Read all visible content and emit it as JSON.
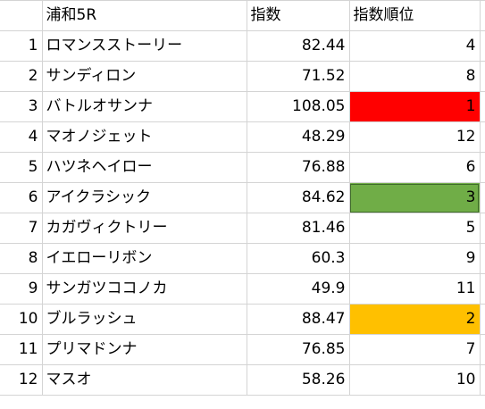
{
  "header": {
    "race": "浦和5R",
    "index": "指数",
    "rank": "指数順位"
  },
  "rows": [
    {
      "num": "1",
      "name": "ロマンスストーリー",
      "index": "82.44",
      "rank": "4",
      "fill": ""
    },
    {
      "num": "2",
      "name": "サンディロン",
      "index": "71.52",
      "rank": "8",
      "fill": ""
    },
    {
      "num": "3",
      "name": "バトルオサンナ",
      "index": "108.05",
      "rank": "1",
      "fill": "#ff0000"
    },
    {
      "num": "4",
      "name": "マオノジェット",
      "index": "48.29",
      "rank": "12",
      "fill": ""
    },
    {
      "num": "5",
      "name": "ハツネヘイロー",
      "index": "76.88",
      "rank": "6",
      "fill": ""
    },
    {
      "num": "6",
      "name": "アイクラシック",
      "index": "84.62",
      "rank": "3",
      "fill": "#70ad47"
    },
    {
      "num": "7",
      "name": "カガヴィクトリー",
      "index": "81.46",
      "rank": "5",
      "fill": ""
    },
    {
      "num": "8",
      "name": "イエローリボン",
      "index": "60.3",
      "rank": "9",
      "fill": ""
    },
    {
      "num": "9",
      "name": "サンガツココノカ",
      "index": "49.9",
      "rank": "11",
      "fill": ""
    },
    {
      "num": "10",
      "name": "ブルラッシュ",
      "index": "88.47",
      "rank": "2",
      "fill": "#ffc000"
    },
    {
      "num": "11",
      "name": "プリマドンナ",
      "index": "76.85",
      "rank": "7",
      "fill": ""
    },
    {
      "num": "12",
      "name": "マスオ",
      "index": "58.26",
      "rank": "10",
      "fill": ""
    }
  ]
}
